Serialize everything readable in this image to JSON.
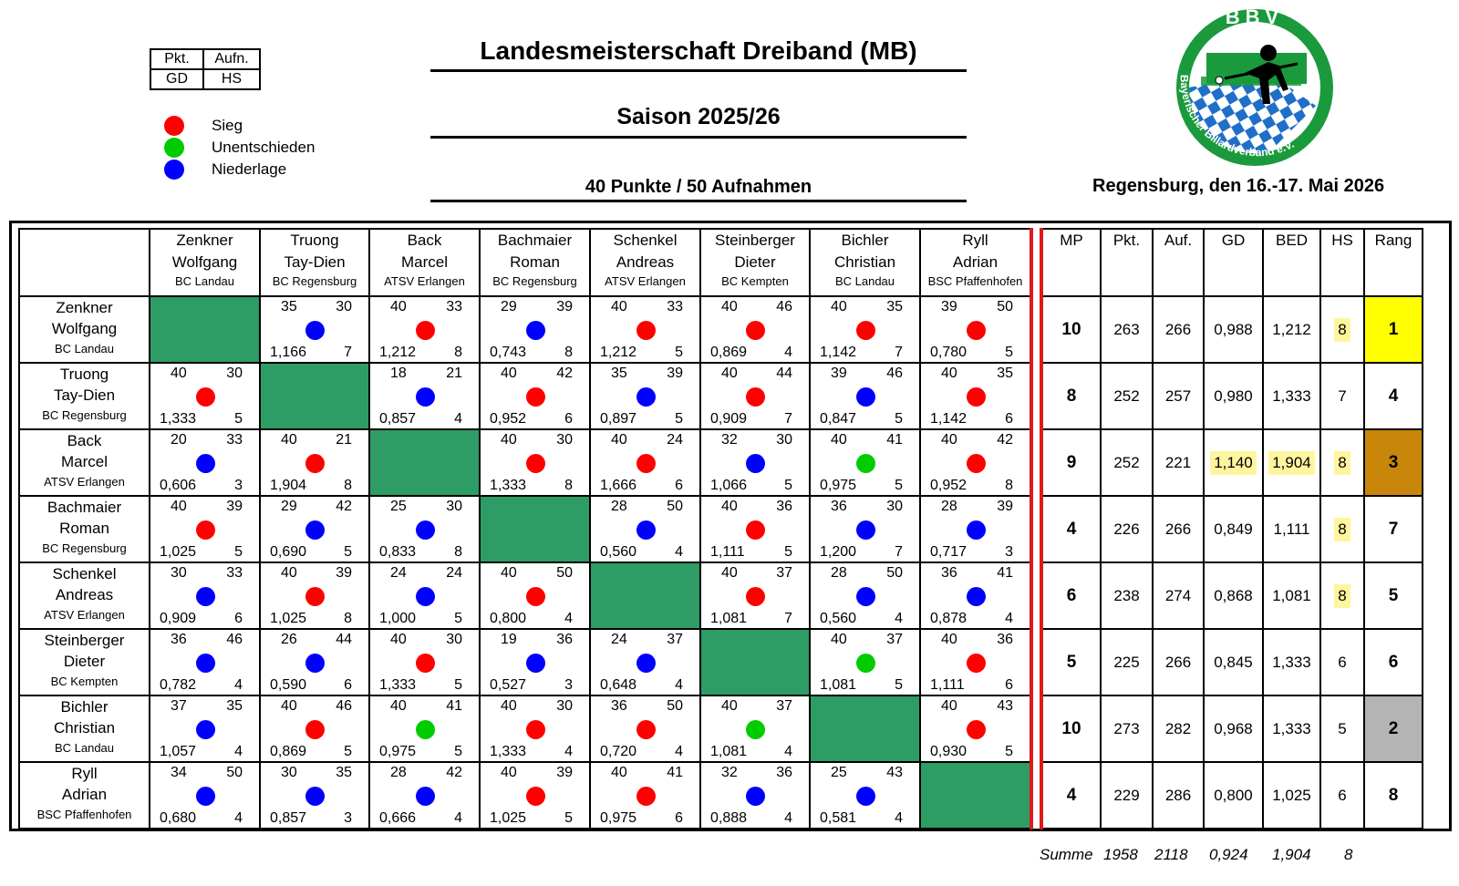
{
  "legend_box": {
    "pkt": "Pkt.",
    "aufn": "Aufn.",
    "gd": "GD",
    "hs": "HS"
  },
  "legend": [
    {
      "label": "Sieg",
      "color": "#ff0000"
    },
    {
      "label": "Unentschieden",
      "color": "#00cc00"
    },
    {
      "label": "Niederlage",
      "color": "#0000ff"
    }
  ],
  "title": "Landesmeisterschaft Dreiband (MB)",
  "season": "Saison 2025/26",
  "format": "40 Punkte / 50 Aufnahmen",
  "location": "Regensburg, den 16.-17. Mai 2026",
  "logo": {
    "letters": "BBV",
    "ring_text": "Bayerischer Billardverband e.V."
  },
  "players": [
    {
      "last": "Zenkner",
      "first": "Wolfgang",
      "club": "BC Landau"
    },
    {
      "last": "Truong",
      "first": "Tay-Dien",
      "club": "BC Regensburg"
    },
    {
      "last": "Back",
      "first": "Marcel",
      "club": "ATSV Erlangen"
    },
    {
      "last": "Bachmaier",
      "first": "Roman",
      "club": "BC Regensburg"
    },
    {
      "last": "Schenkel",
      "first": "Andreas",
      "club": "ATSV Erlangen"
    },
    {
      "last": "Steinberger",
      "first": "Dieter",
      "club": "BC Kempten"
    },
    {
      "last": "Bichler",
      "first": "Christian",
      "club": "BC Landau"
    },
    {
      "last": "Ryll",
      "first": "Adrian",
      "club": "BSC Pfaffenhofen"
    }
  ],
  "stat_headers": [
    "MP",
    "Pkt.",
    "Auf.",
    "GD",
    "BED",
    "HS",
    "Rang"
  ],
  "results": [
    [
      null,
      [
        "35",
        "30",
        "L",
        "1,166",
        "7"
      ],
      [
        "40",
        "33",
        "W",
        "1,212",
        "8"
      ],
      [
        "29",
        "39",
        "L",
        "0,743",
        "8"
      ],
      [
        "40",
        "33",
        "W",
        "1,212",
        "5"
      ],
      [
        "40",
        "46",
        "W",
        "0,869",
        "4"
      ],
      [
        "40",
        "35",
        "W",
        "1,142",
        "7"
      ],
      [
        "39",
        "50",
        "W",
        "0,780",
        "5"
      ]
    ],
    [
      [
        "40",
        "30",
        "W",
        "1,333",
        "5"
      ],
      null,
      [
        "18",
        "21",
        "L",
        "0,857",
        "4"
      ],
      [
        "40",
        "42",
        "W",
        "0,952",
        "6"
      ],
      [
        "35",
        "39",
        "L",
        "0,897",
        "5"
      ],
      [
        "40",
        "44",
        "W",
        "0,909",
        "7"
      ],
      [
        "39",
        "46",
        "L",
        "0,847",
        "5"
      ],
      [
        "40",
        "35",
        "W",
        "1,142",
        "6"
      ]
    ],
    [
      [
        "20",
        "33",
        "L",
        "0,606",
        "3"
      ],
      [
        "40",
        "21",
        "W",
        "1,904",
        "8"
      ],
      null,
      [
        "40",
        "30",
        "W",
        "1,333",
        "8"
      ],
      [
        "40",
        "24",
        "W",
        "1,666",
        "6"
      ],
      [
        "32",
        "30",
        "L",
        "1,066",
        "5"
      ],
      [
        "40",
        "41",
        "D",
        "0,975",
        "5"
      ],
      [
        "40",
        "42",
        "W",
        "0,952",
        "8"
      ]
    ],
    [
      [
        "40",
        "39",
        "W",
        "1,025",
        "5"
      ],
      [
        "29",
        "42",
        "L",
        "0,690",
        "5"
      ],
      [
        "25",
        "30",
        "L",
        "0,833",
        "8"
      ],
      null,
      [
        "28",
        "50",
        "L",
        "0,560",
        "4"
      ],
      [
        "40",
        "36",
        "W",
        "1,111",
        "5"
      ],
      [
        "36",
        "30",
        "L",
        "1,200",
        "7"
      ],
      [
        "28",
        "39",
        "L",
        "0,717",
        "3"
      ]
    ],
    [
      [
        "30",
        "33",
        "L",
        "0,909",
        "6"
      ],
      [
        "40",
        "39",
        "W",
        "1,025",
        "8"
      ],
      [
        "24",
        "24",
        "L",
        "1,000",
        "5"
      ],
      [
        "40",
        "50",
        "W",
        "0,800",
        "4"
      ],
      null,
      [
        "40",
        "37",
        "W",
        "1,081",
        "7"
      ],
      [
        "28",
        "50",
        "L",
        "0,560",
        "4"
      ],
      [
        "36",
        "41",
        "L",
        "0,878",
        "4"
      ]
    ],
    [
      [
        "36",
        "46",
        "L",
        "0,782",
        "4"
      ],
      [
        "26",
        "44",
        "L",
        "0,590",
        "6"
      ],
      [
        "40",
        "30",
        "W",
        "1,333",
        "5"
      ],
      [
        "19",
        "36",
        "L",
        "0,527",
        "3"
      ],
      [
        "24",
        "37",
        "L",
        "0,648",
        "4"
      ],
      null,
      [
        "40",
        "37",
        "D",
        "1,081",
        "5"
      ],
      [
        "40",
        "36",
        "W",
        "1,111",
        "6"
      ]
    ],
    [
      [
        "37",
        "35",
        "L",
        "1,057",
        "4"
      ],
      [
        "40",
        "46",
        "W",
        "0,869",
        "5"
      ],
      [
        "40",
        "41",
        "D",
        "0,975",
        "5"
      ],
      [
        "40",
        "30",
        "W",
        "1,333",
        "4"
      ],
      [
        "36",
        "50",
        "W",
        "0,720",
        "4"
      ],
      [
        "40",
        "37",
        "D",
        "1,081",
        "4"
      ],
      null,
      [
        "40",
        "43",
        "W",
        "0,930",
        "5"
      ]
    ],
    [
      [
        "34",
        "50",
        "L",
        "0,680",
        "4"
      ],
      [
        "30",
        "35",
        "L",
        "0,857",
        "3"
      ],
      [
        "28",
        "42",
        "L",
        "0,666",
        "4"
      ],
      [
        "40",
        "39",
        "W",
        "1,025",
        "5"
      ],
      [
        "40",
        "41",
        "W",
        "0,975",
        "6"
      ],
      [
        "32",
        "36",
        "L",
        "0,888",
        "4"
      ],
      [
        "25",
        "43",
        "L",
        "0,581",
        "4"
      ],
      null
    ]
  ],
  "stats": [
    {
      "mp": "10",
      "pkt": "263",
      "auf": "266",
      "gd": "0,988",
      "bed": "1,212",
      "hs": "8",
      "rang": "1"
    },
    {
      "mp": "8",
      "pkt": "252",
      "auf": "257",
      "gd": "0,980",
      "bed": "1,333",
      "hs": "7",
      "rang": "4"
    },
    {
      "mp": "9",
      "pkt": "252",
      "auf": "221",
      "gd": "1,140",
      "bed": "1,904",
      "hs": "8",
      "rang": "3"
    },
    {
      "mp": "4",
      "pkt": "226",
      "auf": "266",
      "gd": "0,849",
      "bed": "1,111",
      "hs": "8",
      "rang": "7"
    },
    {
      "mp": "6",
      "pkt": "238",
      "auf": "274",
      "gd": "0,868",
      "bed": "1,081",
      "hs": "8",
      "rang": "5"
    },
    {
      "mp": "5",
      "pkt": "225",
      "auf": "266",
      "gd": "0,845",
      "bed": "1,333",
      "hs": "6",
      "rang": "6"
    },
    {
      "mp": "10",
      "pkt": "273",
      "auf": "282",
      "gd": "0,968",
      "bed": "1,333",
      "hs": "5",
      "rang": "2"
    },
    {
      "mp": "4",
      "pkt": "229",
      "auf": "286",
      "gd": "0,800",
      "bed": "1,025",
      "hs": "6",
      "rang": "8"
    }
  ],
  "highlights": {
    "gd": [
      2
    ],
    "bed": [
      2
    ],
    "hs": [
      0,
      2,
      3,
      4
    ],
    "rang_colors": {
      "0": "#ffff00",
      "2": "#c8860a",
      "6": "#b4b4b4"
    }
  },
  "colors": {
    "win": "#ff0000",
    "draw": "#00cc00",
    "loss": "#0000ff",
    "diagonal": "#2e9c65",
    "separator": "#e0171c",
    "highlight": "#fff59e"
  },
  "summary": {
    "label": "Summe",
    "pkt": "1958",
    "auf": "2118",
    "gd": "0,924",
    "bed": "1,904",
    "hs": "8"
  }
}
